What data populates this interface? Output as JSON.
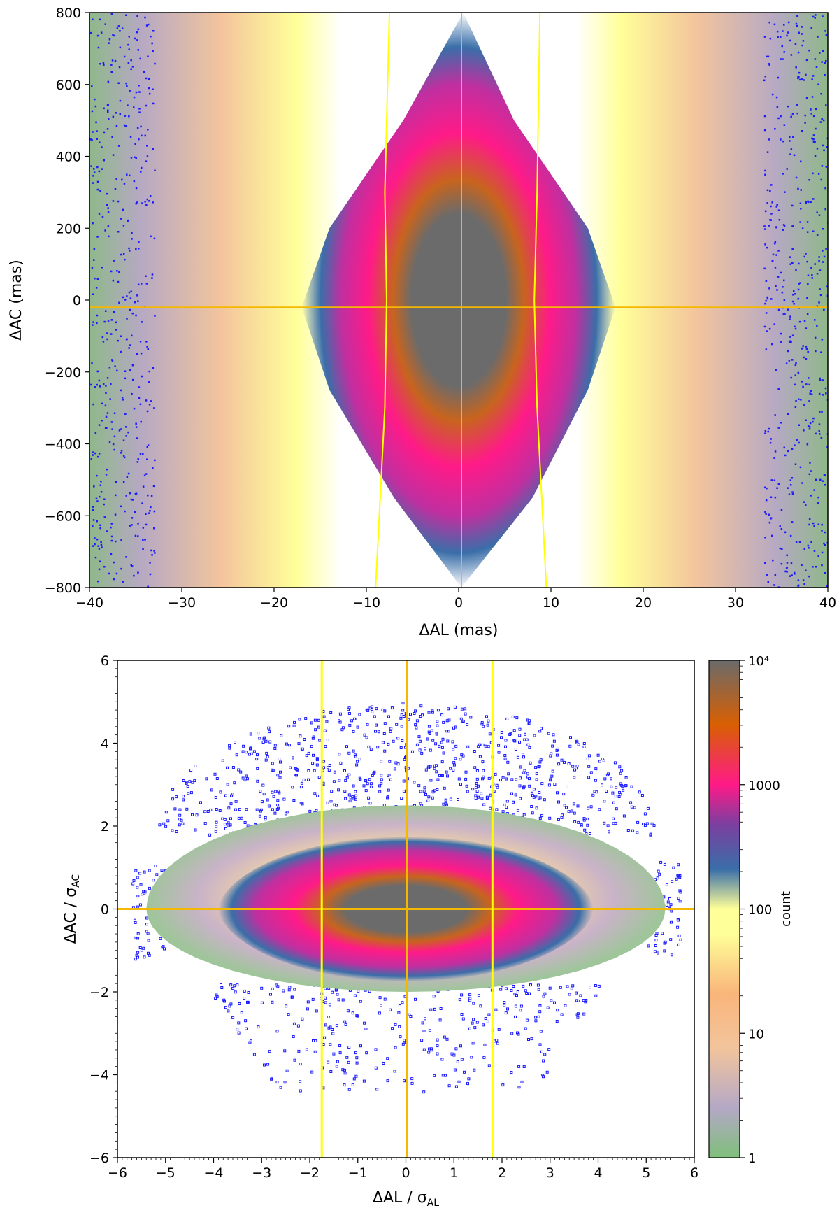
{
  "chart_data": [
    {
      "type": "heatmap",
      "title": "",
      "xlabel": "ΔAL (mas)",
      "ylabel": "ΔAC (mas)",
      "xlim": [
        -40,
        40
      ],
      "ylim": [
        -800,
        800
      ],
      "x_ticks": [
        -40,
        -30,
        -20,
        -10,
        0,
        10,
        20,
        30,
        40
      ],
      "y_ticks": [
        -800,
        -600,
        -400,
        -200,
        0,
        200,
        400,
        600,
        800
      ],
      "x_tick_labels": [
        "−40",
        "−30",
        "−20",
        "−10",
        "0",
        "10",
        "20",
        "30",
        "40"
      ],
      "y_tick_labels": [
        "−800",
        "−600",
        "−400",
        "−200",
        "0",
        "200",
        "400",
        "600",
        "800"
      ],
      "overlay_lines": {
        "horizontal_center": {
          "y": -20,
          "color": "#f5b800"
        },
        "vertical_center": {
          "x": 0.3,
          "color": "#f5b800"
        },
        "vertical_bounds": [
          {
            "points": [
              [
                -9,
                -800
              ],
              [
                -8,
                -300
              ],
              [
                -7.8,
                0
              ],
              [
                -8,
                300
              ],
              [
                -7.5,
                800
              ]
            ],
            "color": "#ffff00"
          },
          {
            "points": [
              [
                9.5,
                -800
              ],
              [
                8.5,
                -300
              ],
              [
                8.2,
                0
              ],
              [
                8.5,
                300
              ],
              [
                8.8,
                800
              ]
            ],
            "color": "#ffff00"
          }
        ]
      },
      "grid": false
    },
    {
      "type": "heatmap",
      "title": "",
      "xlabel": "ΔAL / σAL",
      "xlabel_parts": {
        "main": "ΔAL / σ",
        "sub": "AL"
      },
      "ylabel": "ΔAC / σAC",
      "ylabel_parts": {
        "main": "ΔAC / σ",
        "sub": "AC"
      },
      "xlim": [
        -6,
        6
      ],
      "ylim": [
        -6,
        6
      ],
      "x_ticks": [
        -6,
        -5,
        -4,
        -3,
        -2,
        -1,
        0,
        1,
        2,
        3,
        4,
        5,
        6
      ],
      "y_ticks": [
        -6,
        -4,
        -2,
        0,
        2,
        4,
        6
      ],
      "x_tick_labels": [
        "−6",
        "−5",
        "−4",
        "−3",
        "−2",
        "−1",
        "0",
        "1",
        "2",
        "3",
        "4",
        "5",
        "6"
      ],
      "y_tick_labels": [
        "−6",
        "−4",
        "−2",
        "0",
        "2",
        "4",
        "6"
      ],
      "overlay_lines": {
        "horizontal_center": {
          "y": 0,
          "color": "#f5b800"
        },
        "vertical_center": {
          "x": 0.02,
          "color": "#f5b800"
        },
        "vertical_bounds": [
          {
            "points": [
              [
                -1.75,
                -6
              ],
              [
                -1.75,
                6
              ]
            ],
            "color": "#ffff00"
          },
          {
            "points": [
              [
                1.8,
                -6
              ],
              [
                1.8,
                6
              ]
            ],
            "color": "#ffff00"
          }
        ]
      },
      "colorbar": {
        "label": "count",
        "scale": "log",
        "range": [
          1,
          10000
        ],
        "tick_values": [
          1,
          10,
          100,
          1000,
          10000
        ],
        "tick_labels": [
          "1",
          "10",
          "100",
          "1000",
          "10⁴"
        ],
        "colors": [
          "#7fbf7b",
          "#c9a8c2",
          "#f5c9a0",
          "#f9b57a",
          "#ffff99",
          "#3a6ea8",
          "#7b3fa0",
          "#ff1a88",
          "#d95f02",
          "#6a6a6a"
        ]
      },
      "grid": false
    }
  ]
}
